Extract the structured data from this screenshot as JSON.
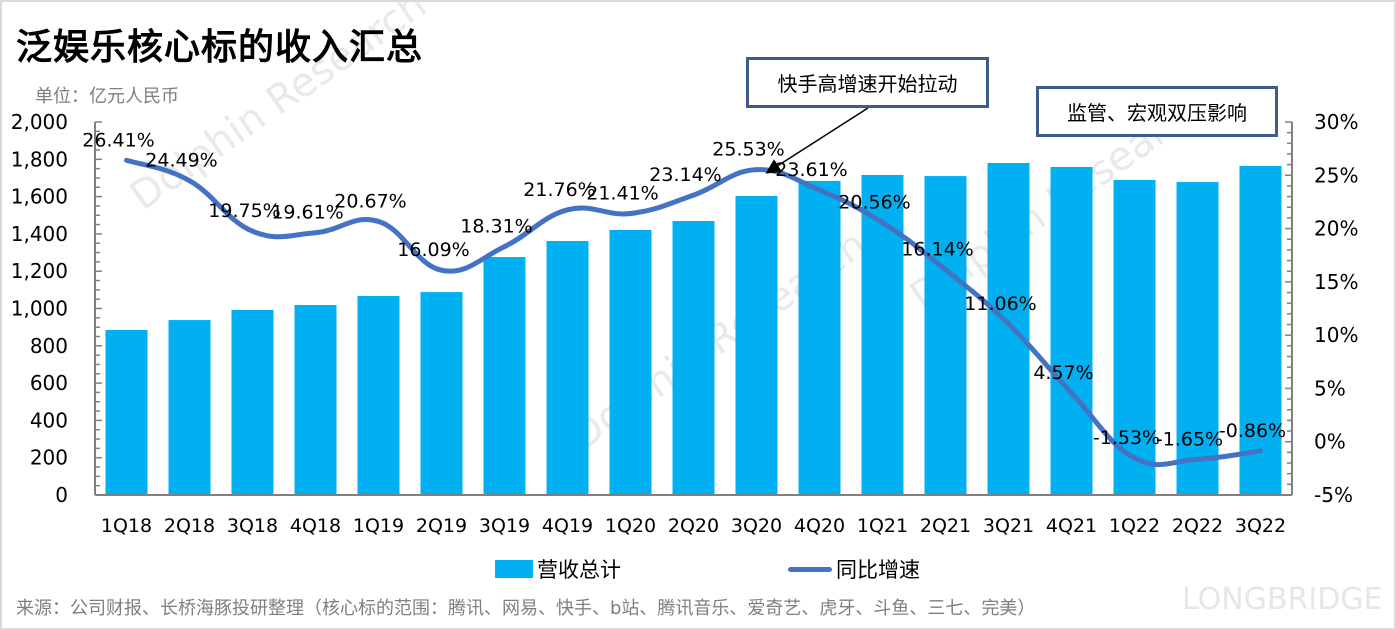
{
  "title": "泛娱乐核心标的收入汇总",
  "unit_label": "单位：亿元人民币",
  "source": "来源：公司财报、长桥海豚投研整理（核心标的范围：腾讯、网易、快手、b站、腾讯音乐、爱奇艺、虎牙、斗鱼、三七、完美）",
  "watermark": {
    "brand": "LONGBRIDGE",
    "research": "Dolphin Research"
  },
  "annotations": [
    {
      "text": "快手高增速开始拉动"
    },
    {
      "text": "监管、宏观双压影响"
    }
  ],
  "colors": {
    "bar": "#00b0f0",
    "line": "#4472c4",
    "annotation_border": "#3f5b87"
  },
  "chart_data": {
    "type": "bar+line",
    "title": "泛娱乐核心标的收入汇总",
    "categories": [
      "1Q18",
      "2Q18",
      "3Q18",
      "4Q18",
      "1Q19",
      "2Q19",
      "3Q19",
      "4Q19",
      "1Q20",
      "2Q20",
      "3Q20",
      "4Q20",
      "1Q21",
      "2Q21",
      "3Q21",
      "4Q21",
      "1Q22",
      "2Q22",
      "3Q22"
    ],
    "series": [
      {
        "name": "营收总计",
        "type": "bar",
        "axis": "left",
        "values": [
          885,
          938,
          992,
          1019,
          1067,
          1088,
          1276,
          1362,
          1421,
          1469,
          1603,
          1684,
          1716,
          1710,
          1780,
          1759,
          1689,
          1678,
          1764
        ]
      },
      {
        "name": "同比增速",
        "type": "line",
        "axis": "right",
        "values": [
          26.41,
          24.49,
          19.75,
          19.61,
          20.67,
          16.09,
          18.31,
          21.76,
          21.41,
          23.14,
          25.53,
          23.61,
          20.56,
          16.14,
          11.06,
          4.57,
          -1.53,
          -1.65,
          -0.86
        ],
        "labels": [
          "26.41%",
          "24.49%",
          "19.75%",
          "19.61%",
          "20.67%",
          "16.09%",
          "18.31%",
          "21.76%",
          "21.41%",
          "23.14%",
          "25.53%",
          "23.61%",
          "20.56%",
          "16.14%",
          "11.06%",
          "4.57%",
          "-1.53%",
          "-1.65%",
          "-0.86%"
        ]
      }
    ],
    "y_left": {
      "ylim": [
        0,
        2000
      ],
      "ticks": [
        0,
        200,
        400,
        600,
        800,
        1000,
        1200,
        1400,
        1600,
        1800,
        2000
      ],
      "tick_labels": [
        "0",
        "200",
        "400",
        "600",
        "800",
        "1,000",
        "1,200",
        "1,400",
        "1,600",
        "1,800",
        "2,000"
      ]
    },
    "y_right": {
      "ylim": [
        -5,
        30
      ],
      "ticks": [
        -5,
        0,
        5,
        10,
        15,
        20,
        25,
        30
      ],
      "tick_labels": [
        "-5%",
        "0%",
        "5%",
        "10%",
        "15%",
        "20%",
        "25%",
        "30%"
      ]
    },
    "legend": {
      "position": "bottom",
      "entries": [
        "营收总计",
        "同比增速"
      ]
    },
    "grid": false
  }
}
